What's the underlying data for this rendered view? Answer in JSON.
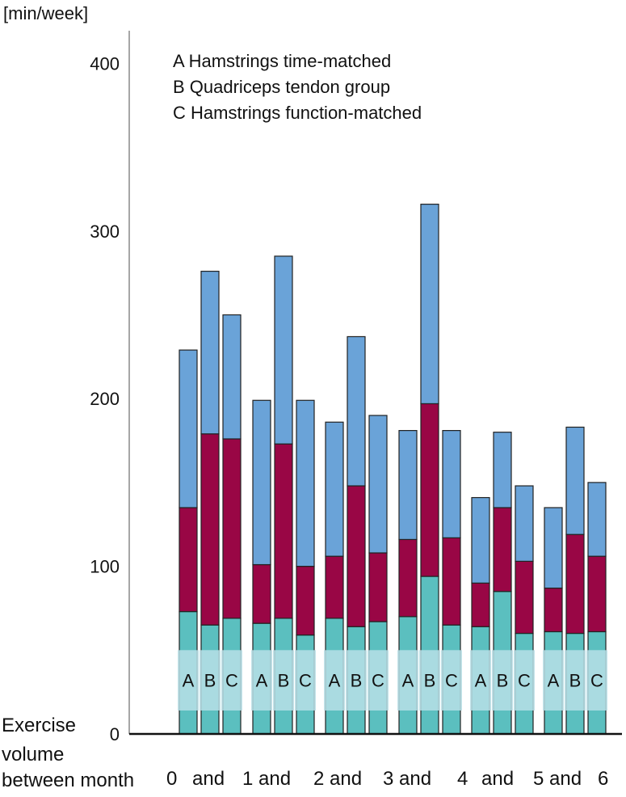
{
  "chart_data": {
    "type": "bar",
    "stacked": true,
    "title": "",
    "ylabel": "[min/week]",
    "xlabel_lines": [
      "Exercise",
      "volume",
      "between month"
    ],
    "ylim": [
      0,
      420
    ],
    "yticks": [
      0,
      100,
      200,
      300,
      400
    ],
    "legend": [
      "A Hamstrings time-matched",
      "B Quadriceps tendon group",
      "C Hamstrings function-matched"
    ],
    "period_labels": [
      "0",
      "and",
      "1 and",
      "2 and",
      "3 and",
      "4",
      "and",
      "5 and",
      "6"
    ],
    "bar_letters": [
      "A",
      "B",
      "C"
    ],
    "colors": {
      "bottom": "#5bbfbf",
      "middle": "#990645",
      "top": "#6aa3d8",
      "band": "#b8dfe6",
      "outline": "#222222"
    },
    "groups": [
      {
        "period": "0-1",
        "bars": [
          {
            "label": "A",
            "segments": [
              73,
              62,
              94
            ]
          },
          {
            "label": "B",
            "segments": [
              65,
              114,
              97
            ]
          },
          {
            "label": "C",
            "segments": [
              69,
              107,
              74
            ]
          }
        ]
      },
      {
        "period": "1-2",
        "bars": [
          {
            "label": "A",
            "segments": [
              66,
              35,
              98
            ]
          },
          {
            "label": "B",
            "segments": [
              69,
              104,
              112
            ]
          },
          {
            "label": "C",
            "segments": [
              59,
              41,
              99
            ]
          }
        ]
      },
      {
        "period": "2-3",
        "bars": [
          {
            "label": "A",
            "segments": [
              69,
              37,
              80
            ]
          },
          {
            "label": "B",
            "segments": [
              64,
              84,
              89
            ]
          },
          {
            "label": "C",
            "segments": [
              67,
              41,
              82
            ]
          }
        ]
      },
      {
        "period": "3-4",
        "bars": [
          {
            "label": "A",
            "segments": [
              70,
              46,
              65
            ]
          },
          {
            "label": "B",
            "segments": [
              94,
              103,
              119
            ]
          },
          {
            "label": "C",
            "segments": [
              65,
              52,
              64
            ]
          }
        ]
      },
      {
        "period": "4-5",
        "bars": [
          {
            "label": "A",
            "segments": [
              64,
              26,
              51
            ]
          },
          {
            "label": "B",
            "segments": [
              85,
              50,
              45
            ]
          },
          {
            "label": "C",
            "segments": [
              60,
              43,
              45
            ]
          }
        ]
      },
      {
        "period": "5-6",
        "bars": [
          {
            "label": "A",
            "segments": [
              61,
              26,
              48
            ]
          },
          {
            "label": "B",
            "segments": [
              60,
              59,
              64
            ]
          },
          {
            "label": "C",
            "segments": [
              61,
              45,
              44
            ]
          }
        ]
      }
    ]
  }
}
